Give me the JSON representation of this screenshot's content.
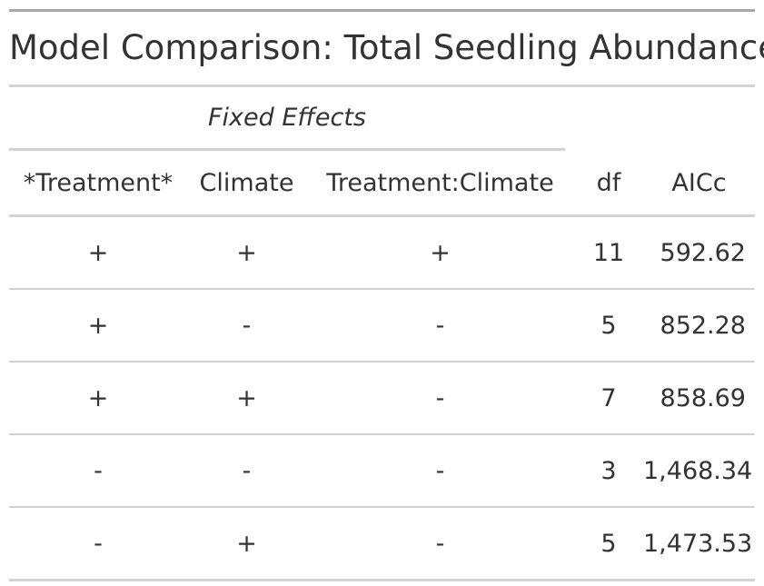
{
  "title": "Model Comparison: Total Seedling Abundance",
  "spanner": "Fixed Effects",
  "columns": [
    "*Treatment*",
    "Climate",
    "Treatment:Climate",
    "df",
    "AICc"
  ],
  "rows": [
    {
      "treatment": "+",
      "climate": "+",
      "interaction": "+",
      "df": "11",
      "aicc": "592.62"
    },
    {
      "treatment": "+",
      "climate": "-",
      "interaction": "-",
      "df": "5",
      "aicc": "852.28"
    },
    {
      "treatment": "+",
      "climate": "+",
      "interaction": "-",
      "df": "7",
      "aicc": "858.69"
    },
    {
      "treatment": "-",
      "climate": "-",
      "interaction": "-",
      "df": "3",
      "aicc": "1,468.34"
    },
    {
      "treatment": "-",
      "climate": "+",
      "interaction": "-",
      "df": "5",
      "aicc": "1,473.53"
    }
  ]
}
